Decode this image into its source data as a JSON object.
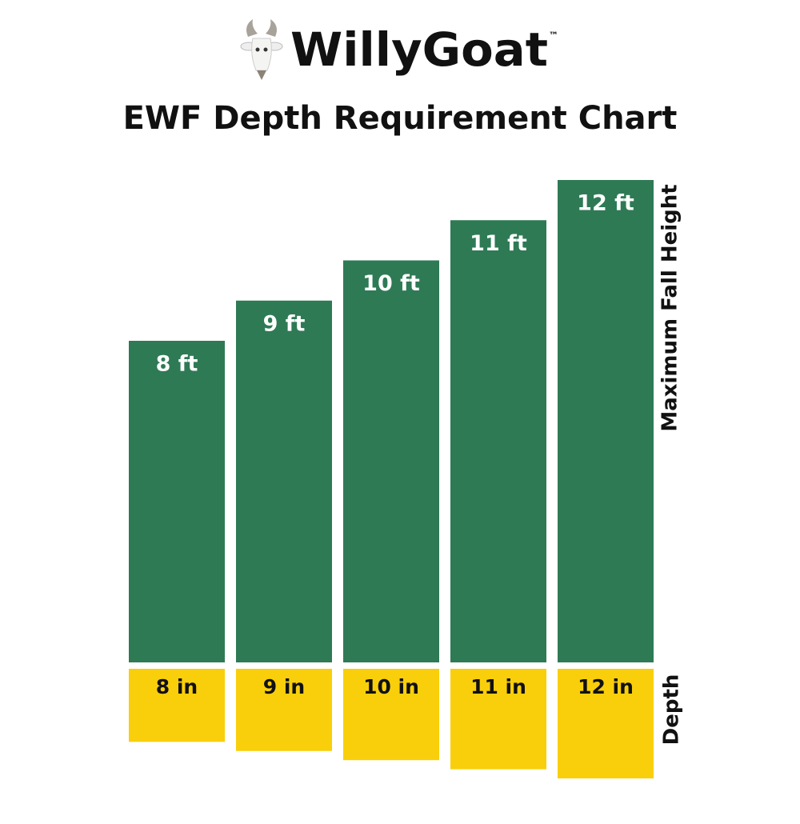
{
  "chart_data": {
    "type": "bar",
    "brand": "WillyGoat",
    "brand_mark": "™",
    "title": "EWF Depth Requirement Chart",
    "series": [
      {
        "name": "Maximum Fall Height",
        "color": "#2e7a55",
        "values": [
          8,
          9,
          10,
          11,
          12
        ],
        "value_labels": [
          "8 ft",
          "9 ft",
          "10 ft",
          "11 ft",
          "12 ft"
        ]
      },
      {
        "name": "Depth",
        "color": "#f9cf0b",
        "values": [
          8,
          9,
          10,
          11,
          12
        ],
        "value_labels": [
          "8 in",
          "9 in",
          "10 in",
          "11 in",
          "12 in"
        ]
      }
    ]
  }
}
